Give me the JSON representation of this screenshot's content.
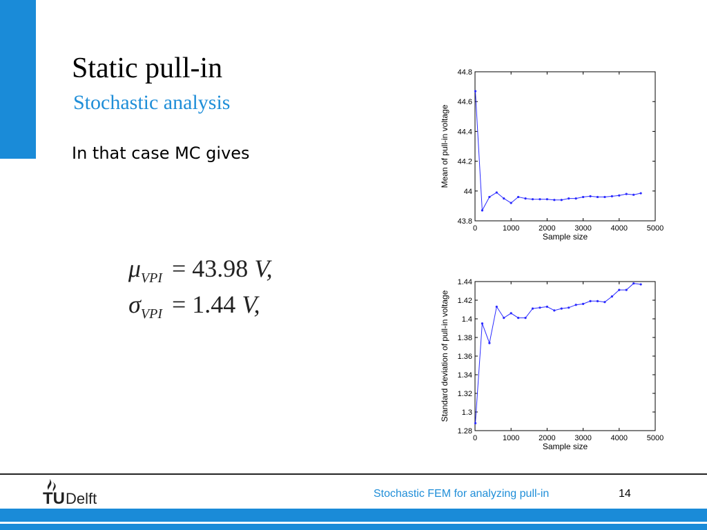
{
  "slide": {
    "title": "Static pull-in",
    "subtitle": "Stochastic analysis",
    "body": "In that case MC gives",
    "equations": [
      {
        "symbol": "μ",
        "subscript": "VPI",
        "value": "= 43.98",
        "unit": "V,"
      },
      {
        "symbol": "σ",
        "subscript": "VPI",
        "value": "= 1.44",
        "unit": "V,"
      }
    ]
  },
  "footer": {
    "logo_tu": "TU",
    "logo_delft": "Delft",
    "text": "Stochastic FEM for analyzing pull-in",
    "page": "14"
  },
  "colors": {
    "accent": "#1a8bd8",
    "subtitle": "#1f8ed8",
    "series": "#2a2aff"
  },
  "chart_data": [
    {
      "type": "line",
      "xlabel": "Sample size",
      "ylabel": "Mean of pull-in voltage",
      "xlim": [
        0,
        5000
      ],
      "ylim": [
        43.8,
        44.8
      ],
      "xticks": [
        0,
        1000,
        2000,
        3000,
        4000,
        5000
      ],
      "yticks": [
        43.8,
        44,
        44.2,
        44.4,
        44.6,
        44.8
      ],
      "grid": false,
      "x": [
        10,
        200,
        400,
        600,
        800,
        1000,
        1200,
        1400,
        1600,
        1800,
        2000,
        2200,
        2400,
        2600,
        2800,
        3000,
        3200,
        3400,
        3600,
        3800,
        4000,
        4200,
        4400,
        4600
      ],
      "values": [
        44.67,
        43.87,
        43.96,
        43.99,
        43.95,
        43.92,
        43.96,
        43.95,
        43.945,
        43.945,
        43.945,
        43.94,
        43.94,
        43.95,
        43.95,
        43.96,
        43.965,
        43.96,
        43.96,
        43.965,
        43.97,
        43.98,
        43.975,
        43.985
      ]
    },
    {
      "type": "line",
      "xlabel": "Sample size",
      "ylabel": "Standard deviation of pull-in voltage",
      "xlim": [
        0,
        5000
      ],
      "ylim": [
        1.28,
        1.44
      ],
      "xticks": [
        0,
        1000,
        2000,
        3000,
        4000,
        5000
      ],
      "yticks": [
        1.28,
        1.3,
        1.32,
        1.34,
        1.36,
        1.38,
        1.4,
        1.42,
        1.44
      ],
      "grid": false,
      "x": [
        10,
        200,
        400,
        600,
        800,
        1000,
        1200,
        1400,
        1600,
        1800,
        2000,
        2200,
        2400,
        2600,
        2800,
        3000,
        3200,
        3400,
        3600,
        3800,
        4000,
        4200,
        4400,
        4600
      ],
      "values": [
        1.288,
        1.395,
        1.374,
        1.413,
        1.401,
        1.406,
        1.401,
        1.401,
        1.411,
        1.412,
        1.413,
        1.409,
        1.411,
        1.412,
        1.415,
        1.416,
        1.419,
        1.419,
        1.418,
        1.424,
        1.431,
        1.431,
        1.438,
        1.437
      ]
    }
  ]
}
